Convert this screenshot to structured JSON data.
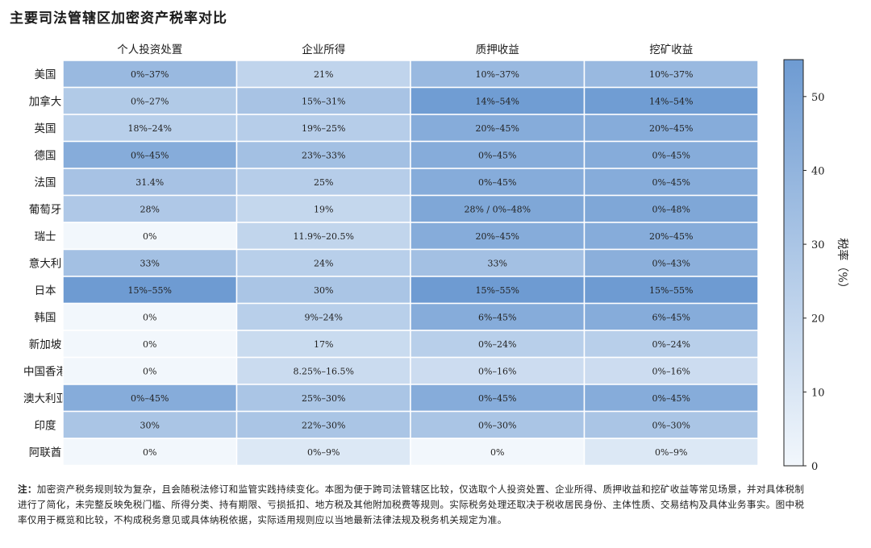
{
  "title": "主要司法管辖区加密资产税率对比",
  "note_label": "注：",
  "note_text": "加密资产税务规则较为复杂，且会随税法修订和监管实践持续变化。本图为便于跨司法管辖区比较，仅选取个人投资处置、企业所得、质押收益和挖矿收益等常见场景，并对具体税制进行了简化，未完整反映免税门槛、所得分类、持有期限、亏损抵扣、地方税及其他附加税费等规则。实际税务处理还取决于税收居民身份、主体性质、交易结构及具体业务事实。图中税率仅用于概览和比较，不构成税务意见或具体纳税依据，实际适用规则应以当地最新法律法规及税务机关规定为准。",
  "chart_data": {
    "type": "heatmap",
    "title": "主要司法管辖区加密资产税率对比",
    "columns": [
      "个人投资处置",
      "企业所得",
      "质押收益",
      "挖矿收益"
    ],
    "rows": [
      "美国",
      "加拿大",
      "英国",
      "德国",
      "法国",
      "葡萄牙",
      "瑞士",
      "意大利",
      "日本",
      "韩国",
      "新加坡",
      "中国香港",
      "澳大利亚",
      "印度",
      "阿联酋"
    ],
    "labels": [
      [
        "0%–37%",
        "21%",
        "10%–37%",
        "10%–37%"
      ],
      [
        "0%–27%",
        "15%–31%",
        "14%–54%",
        "14%–54%"
      ],
      [
        "18%–24%",
        "19%–25%",
        "20%–45%",
        "20%–45%"
      ],
      [
        "0%–45%",
        "23%–33%",
        "0%–45%",
        "0%–45%"
      ],
      [
        "31.4%",
        "25%",
        "0%–45%",
        "0%–45%"
      ],
      [
        "28%",
        "19%",
        "28% / 0%–48%",
        "0%–48%"
      ],
      [
        "0%",
        "11.9%–20.5%",
        "20%–45%",
        "20%–45%"
      ],
      [
        "33%",
        "24%",
        "33%",
        "0%–43%"
      ],
      [
        "15%–55%",
        "30%",
        "15%–55%",
        "15%–55%"
      ],
      [
        "0%",
        "9%–24%",
        "6%–45%",
        "6%–45%"
      ],
      [
        "0%",
        "17%",
        "0%–24%",
        "0%–24%"
      ],
      [
        "0%",
        "8.25%–16.5%",
        "0%–16%",
        "0%–16%"
      ],
      [
        "0%–45%",
        "25%–30%",
        "0%–45%",
        "0%–45%"
      ],
      [
        "30%",
        "22%–30%",
        "0%–30%",
        "0%–30%"
      ],
      [
        "0%",
        "0%–9%",
        "0%",
        "0%–9%"
      ]
    ],
    "values": [
      [
        37,
        21,
        37,
        37
      ],
      [
        27,
        31,
        54,
        54
      ],
      [
        24,
        25,
        45,
        45
      ],
      [
        45,
        33,
        45,
        45
      ],
      [
        31.4,
        25,
        45,
        45
      ],
      [
        28,
        19,
        48,
        48
      ],
      [
        0,
        20.5,
        45,
        45
      ],
      [
        33,
        24,
        33,
        43
      ],
      [
        55,
        30,
        55,
        55
      ],
      [
        0,
        24,
        45,
        45
      ],
      [
        0,
        17,
        24,
        24
      ],
      [
        0,
        16.5,
        16,
        16
      ],
      [
        45,
        30,
        45,
        45
      ],
      [
        30,
        30,
        30,
        30
      ],
      [
        0,
        9,
        0,
        9
      ]
    ],
    "colorbar": {
      "label": "税率（%）",
      "range": [
        0,
        55
      ],
      "ticks": [
        0,
        10,
        20,
        30,
        40,
        50
      ],
      "color_low": "#f2f7fc",
      "color_high": "#6e9bd2"
    }
  }
}
